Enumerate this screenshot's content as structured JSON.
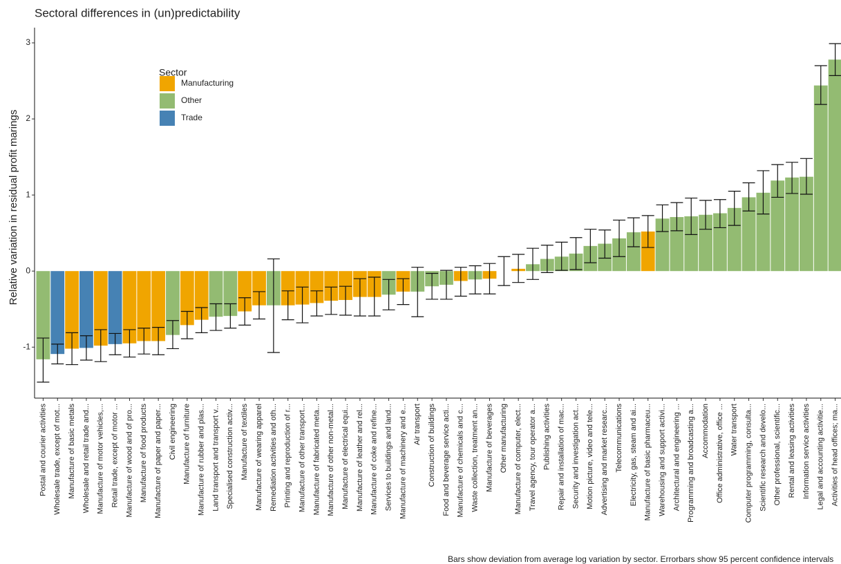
{
  "chart_data": {
    "type": "bar",
    "title": "Sectoral differences in (un)predictability",
    "y_label": "Relative variation in residual profit marings",
    "caption": "Bars show deviation from average log variation by sector. Errorbars show 95 percent confidence intervals",
    "legend_title": "Sector",
    "legend": [
      {
        "name": "Manufacturing",
        "color": "#f0a500"
      },
      {
        "name": "Other",
        "color": "#93bb72"
      },
      {
        "name": "Trade",
        "color": "#4682b4"
      }
    ],
    "categories": [
      "Postal and courier activities",
      "Wholesale trade, except of mot...",
      "Manufacture of basic metals",
      "Wholesale and retail trade and...",
      "Manufacture of motor vehicles,...",
      "Retail trade, except of motor ...",
      "Manufacture of wood and of pro...",
      "Manufacture of food products",
      "Manufacture of paper and paper...",
      "Civil engineering",
      "Manufacture of furniture",
      "Manufacture of rubber and plas...",
      "Land transport and transport v...",
      "Specialised construction activ...",
      "Manufacture of textiles",
      "Manufacture of wearing apparel",
      "Remediation activities and oth...",
      "Printing and reproduction of r...",
      "Manufacture of other transport...",
      "Manufacture of fabricated meta...",
      "Manufacture of other non-metal...",
      "Manufacture of electrical equi...",
      "Manufacture of leather and rel...",
      "Manufacture of coke and refine...",
      "Services to buildings and land...",
      "Manufacture of machinery and e...",
      "Air transport",
      "Construction of buildings",
      "Food and beverage service acti...",
      "Manufacture of chemicals and c...",
      "Waste collection, treatment an...",
      "Manufacture of beverages",
      "Other manufacturing",
      "Manufacture of computer, elect...",
      "Travel agency, tour operator a...",
      "Publishing activities",
      "Repair and installation of mac...",
      "Security and investigation act...",
      "Motion picture, video and tele...",
      "Advertising and market researc...",
      "Telecommunications",
      "Electricity, gas, steam and ai...",
      "Manufacture of basic pharmaceu...",
      "Warehousing and support activi...",
      "Architectural and engineering ...",
      "Programming and broadcasting a...",
      "Accommodation",
      "Office administrative, office ...",
      "Water transport",
      "Computer programming, consulta...",
      "Scientific research and develo...",
      "Other professional, scientific...",
      "Rental and leasing activities",
      "Information service activities",
      "Legal and accounting activitie...",
      "Activities of head offices; ma..."
    ],
    "sector": [
      "Other",
      "Trade",
      "Manufacturing",
      "Trade",
      "Manufacturing",
      "Trade",
      "Manufacturing",
      "Manufacturing",
      "Manufacturing",
      "Other",
      "Manufacturing",
      "Manufacturing",
      "Other",
      "Other",
      "Manufacturing",
      "Manufacturing",
      "Other",
      "Manufacturing",
      "Manufacturing",
      "Manufacturing",
      "Manufacturing",
      "Manufacturing",
      "Manufacturing",
      "Manufacturing",
      "Other",
      "Manufacturing",
      "Other",
      "Other",
      "Other",
      "Manufacturing",
      "Other",
      "Manufacturing",
      "Manufacturing",
      "Manufacturing",
      "Other",
      "Other",
      "Other",
      "Other",
      "Other",
      "Other",
      "Other",
      "Other",
      "Manufacturing",
      "Other",
      "Other",
      "Other",
      "Other",
      "Other",
      "Other",
      "Other",
      "Other",
      "Other",
      "Other",
      "Other",
      "Other",
      "Other"
    ],
    "values": [
      -1.16,
      -1.09,
      -1.02,
      -1.01,
      -0.98,
      -0.96,
      -0.95,
      -0.92,
      -0.92,
      -0.84,
      -0.71,
      -0.64,
      -0.6,
      -0.59,
      -0.53,
      -0.45,
      -0.45,
      -0.45,
      -0.44,
      -0.42,
      -0.39,
      -0.38,
      -0.34,
      -0.34,
      -0.31,
      -0.27,
      -0.27,
      -0.2,
      -0.18,
      -0.13,
      -0.11,
      -0.1,
      0.0,
      0.03,
      0.09,
      0.16,
      0.19,
      0.23,
      0.33,
      0.36,
      0.43,
      0.51,
      0.52,
      0.69,
      0.71,
      0.72,
      0.74,
      0.76,
      0.83,
      0.97,
      1.03,
      1.19,
      1.23,
      1.24,
      2.44,
      2.78
    ],
    "error_low": [
      -1.46,
      -1.22,
      -1.23,
      -1.17,
      -1.19,
      -1.1,
      -1.13,
      -1.09,
      -1.1,
      -1.02,
      -0.89,
      -0.81,
      -0.78,
      -0.75,
      -0.71,
      -0.63,
      -1.07,
      -0.64,
      -0.68,
      -0.59,
      -0.57,
      -0.58,
      -0.59,
      -0.59,
      -0.51,
      -0.44,
      -0.6,
      -0.37,
      -0.37,
      -0.33,
      -0.3,
      -0.3,
      -0.19,
      -0.15,
      -0.11,
      -0.02,
      0.01,
      0.02,
      0.11,
      0.17,
      0.19,
      0.32,
      0.31,
      0.52,
      0.53,
      0.48,
      0.55,
      0.57,
      0.6,
      0.79,
      0.75,
      0.97,
      1.02,
      1.01,
      2.19,
      2.57
    ],
    "error_high": [
      -0.88,
      -0.96,
      -0.81,
      -0.85,
      -0.77,
      -0.82,
      -0.77,
      -0.75,
      -0.74,
      -0.65,
      -0.53,
      -0.48,
      -0.43,
      -0.43,
      -0.35,
      -0.27,
      0.16,
      -0.26,
      -0.21,
      -0.26,
      -0.21,
      -0.2,
      -0.1,
      -0.08,
      -0.11,
      -0.1,
      0.05,
      -0.03,
      0.01,
      0.05,
      0.07,
      0.1,
      0.19,
      0.22,
      0.3,
      0.34,
      0.38,
      0.44,
      0.55,
      0.54,
      0.67,
      0.7,
      0.73,
      0.87,
      0.9,
      0.96,
      0.93,
      0.94,
      1.05,
      1.16,
      1.32,
      1.4,
      1.43,
      1.48,
      2.7,
      2.99
    ],
    "ylim": [
      -1.67,
      3.2
    ],
    "yticks": [
      -1,
      0,
      1,
      2,
      3
    ]
  }
}
